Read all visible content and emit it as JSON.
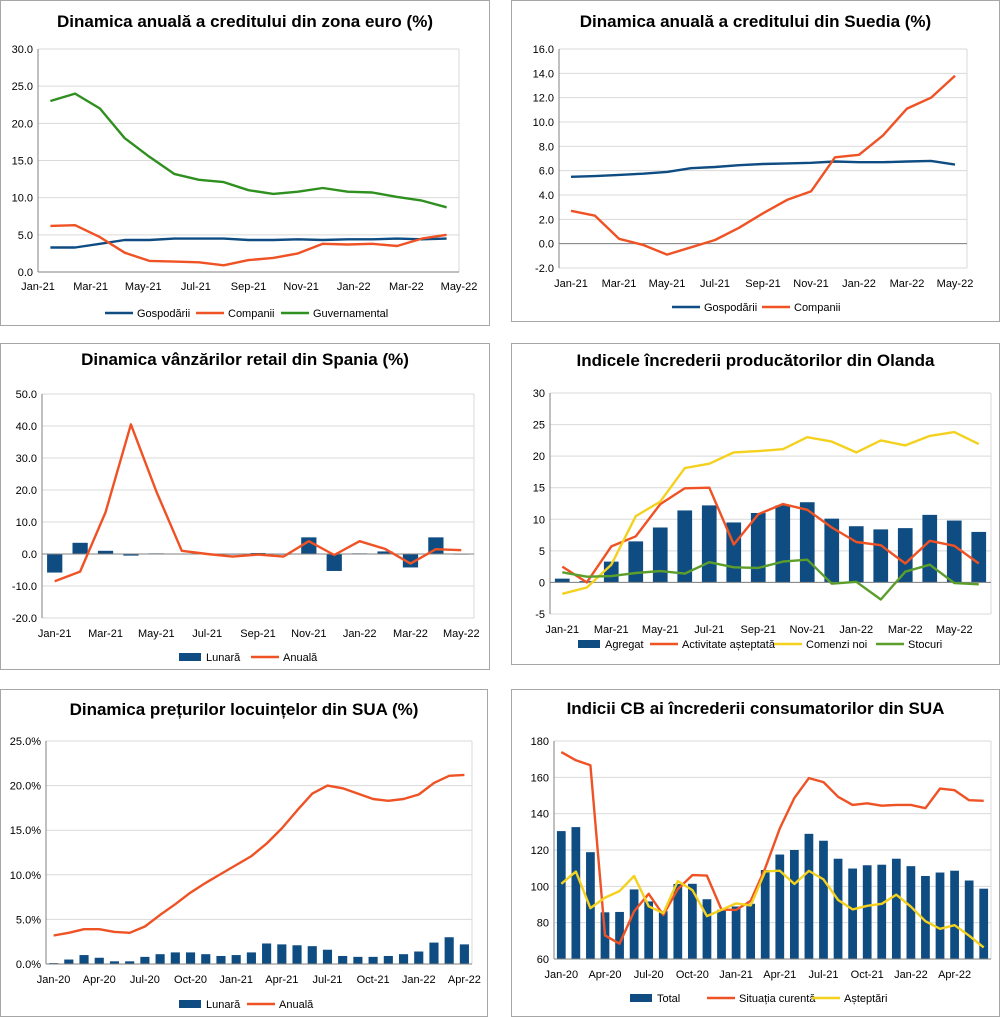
{
  "colors": {
    "navy": "#0e4c82",
    "orange": "#ef5224",
    "green": "#2f8f1f",
    "yellow": "#f5d11f",
    "olive": "#5c9e2b",
    "grid": "#d9d9d9",
    "axis": "#808080"
  },
  "chart_data": [
    {
      "id": "c1",
      "type": "line",
      "title": "Dinamica anuală a creditului din zona euro (%)",
      "categories": [
        "Jan-21",
        "Feb-21",
        "Mar-21",
        "Apr-21",
        "May-21",
        "Jun-21",
        "Jul-21",
        "Aug-21",
        "Sep-21",
        "Oct-21",
        "Nov-21",
        "Dec-21",
        "Jan-22",
        "Feb-22",
        "Mar-22",
        "Apr-22",
        "May-22"
      ],
      "tick_labels": [
        "Jan-21",
        "Mar-21",
        "May-21",
        "Jul-21",
        "Sep-21",
        "Nov-21",
        "Jan-22",
        "Mar-22",
        "May-22"
      ],
      "y_ticks": [
        "0.0",
        "5.0",
        "10.0",
        "15.0",
        "20.0",
        "25.0",
        "30.0"
      ],
      "ylim": [
        0,
        30
      ],
      "series": [
        {
          "name": "Gospodării",
          "style": "line",
          "color": "navy",
          "values": [
            3.3,
            3.3,
            3.8,
            4.3,
            4.3,
            4.5,
            4.5,
            4.5,
            4.3,
            4.3,
            4.4,
            4.3,
            4.4,
            4.4,
            4.5,
            4.4,
            4.5
          ]
        },
        {
          "name": "Companii",
          "style": "line",
          "color": "orange",
          "values": [
            6.2,
            6.3,
            4.7,
            2.6,
            1.5,
            1.4,
            1.3,
            0.9,
            1.6,
            1.9,
            2.5,
            3.8,
            3.7,
            3.8,
            3.5,
            4.5,
            5.0
          ]
        },
        {
          "name": "Guvernamental",
          "style": "line",
          "color": "green",
          "values": [
            23.0,
            24.0,
            22.0,
            18.0,
            15.5,
            13.2,
            12.4,
            12.1,
            11.0,
            10.5,
            10.8,
            11.3,
            10.8,
            10.7,
            10.1,
            9.6,
            8.7
          ]
        }
      ]
    },
    {
      "id": "c2",
      "type": "line",
      "title": "Dinamica anuală a creditului din Suedia (%)",
      "categories": [
        "Jan-21",
        "Feb-21",
        "Mar-21",
        "Apr-21",
        "May-21",
        "Jun-21",
        "Jul-21",
        "Aug-21",
        "Sep-21",
        "Oct-21",
        "Nov-21",
        "Dec-21",
        "Jan-22",
        "Feb-22",
        "Mar-22",
        "Apr-22",
        "May-22"
      ],
      "tick_labels": [
        "Jan-21",
        "Mar-21",
        "May-21",
        "Jul-21",
        "Sep-21",
        "Nov-21",
        "Jan-22",
        "Mar-22",
        "May-22"
      ],
      "y_ticks": [
        "-2.0",
        "0.0",
        "2.0",
        "4.0",
        "6.0",
        "8.0",
        "10.0",
        "12.0",
        "14.0",
        "16.0"
      ],
      "ylim": [
        -2,
        16
      ],
      "series": [
        {
          "name": "Gospodării",
          "style": "line",
          "color": "navy",
          "values": [
            5.5,
            5.55,
            5.65,
            5.75,
            5.9,
            6.2,
            6.3,
            6.45,
            6.55,
            6.6,
            6.65,
            6.75,
            6.7,
            6.7,
            6.75,
            6.8,
            6.5
          ]
        },
        {
          "name": "Companii",
          "style": "line",
          "color": "orange",
          "values": [
            2.7,
            2.3,
            0.4,
            -0.1,
            -0.9,
            -0.3,
            0.3,
            1.3,
            2.5,
            3.6,
            4.3,
            7.1,
            7.3,
            8.9,
            11.1,
            12.0,
            13.8
          ]
        }
      ]
    },
    {
      "id": "c3",
      "type": "bar",
      "title": "Dinamica vânzărilor retail din Spania (%)",
      "categories": [
        "Jan-21",
        "Feb-21",
        "Mar-21",
        "Apr-21",
        "May-21",
        "Jun-21",
        "Jul-21",
        "Aug-21",
        "Sep-21",
        "Oct-21",
        "Nov-21",
        "Dec-21",
        "Jan-22",
        "Feb-22",
        "Mar-22",
        "Apr-22",
        "May-22"
      ],
      "tick_labels": [
        "Jan-21",
        "Mar-21",
        "May-21",
        "Jul-21",
        "Sep-21",
        "Nov-21",
        "Jan-22",
        "Mar-22",
        "May-22"
      ],
      "y_ticks": [
        "-20.0",
        "-10.0",
        "0.0",
        "10.0",
        "20.0",
        "30.0",
        "40.0",
        "50.0"
      ],
      "ylim": [
        -20,
        50
      ],
      "series": [
        {
          "name": "Lunară",
          "style": "bar",
          "color": "navy",
          "values": [
            -5.8,
            3.5,
            1.0,
            -0.5,
            0.2,
            0.1,
            0.1,
            0.0,
            0.3,
            -0.2,
            5.2,
            -5.3,
            0.2,
            0.8,
            -4.2,
            5.2,
            0.0
          ]
        },
        {
          "name": "Anuală",
          "style": "line",
          "color": "orange",
          "values": [
            -8.5,
            -5.5,
            13.0,
            40.5,
            19.5,
            1.0,
            0.0,
            -0.8,
            -0.2,
            -0.8,
            4.0,
            -0.3,
            4.0,
            1.6,
            -3.0,
            1.5,
            1.2
          ]
        }
      ]
    },
    {
      "id": "c4",
      "type": "bar",
      "title": "Indicele încrederii producătorilor din Olanda",
      "categories": [
        "Jan-21",
        "Feb-21",
        "Mar-21",
        "Apr-21",
        "May-21",
        "Jun-21",
        "Jul-21",
        "Aug-21",
        "Sep-21",
        "Oct-21",
        "Nov-21",
        "Dec-21",
        "Jan-22",
        "Feb-22",
        "Mar-22",
        "Apr-22",
        "May-22",
        "Jun-22"
      ],
      "tick_labels": [
        "Jan-21",
        "Mar-21",
        "May-21",
        "Jul-21",
        "Sep-21",
        "Nov-21",
        "Jan-22",
        "Mar-22",
        "May-22"
      ],
      "y_ticks": [
        "-5",
        "0",
        "5",
        "10",
        "15",
        "20",
        "25",
        "30"
      ],
      "ylim": [
        -5,
        30
      ],
      "series": [
        {
          "name": "Agregat",
          "style": "bar",
          "color": "navy",
          "values": [
            0.6,
            0.2,
            3.3,
            6.5,
            8.7,
            11.4,
            12.2,
            9.5,
            11.0,
            12.2,
            12.7,
            10.1,
            8.9,
            8.4,
            8.6,
            10.7,
            9.8,
            8.0
          ]
        },
        {
          "name": "Activitate așteptată",
          "style": "line",
          "color": "orange",
          "values": [
            2.5,
            0.0,
            5.7,
            7.3,
            12.4,
            14.9,
            15.0,
            6.0,
            10.8,
            12.4,
            11.5,
            8.7,
            6.4,
            5.9,
            3.0,
            6.6,
            5.8,
            3.0
          ]
        },
        {
          "name": "Comenzi noi",
          "style": "line",
          "color": "yellow",
          "values": [
            -1.8,
            -0.8,
            2.8,
            10.5,
            12.8,
            18.1,
            18.8,
            20.6,
            20.8,
            21.1,
            23.0,
            22.3,
            20.6,
            22.5,
            21.7,
            23.2,
            23.8,
            21.9
          ]
        },
        {
          "name": "Stocuri",
          "style": "line",
          "color": "olive",
          "values": [
            1.6,
            0.9,
            1.0,
            1.5,
            1.8,
            1.4,
            3.2,
            2.4,
            2.3,
            3.3,
            3.6,
            -0.2,
            0.1,
            -2.7,
            1.7,
            2.8,
            -0.1,
            -0.3
          ]
        }
      ]
    },
    {
      "id": "c5",
      "type": "bar",
      "title": "Dinamica prețurilor locuințelor din SUA (%)",
      "categories": [
        "Jan-20",
        "Feb-20",
        "Mar-20",
        "Apr-20",
        "May-20",
        "Jun-20",
        "Jul-20",
        "Aug-20",
        "Sep-20",
        "Oct-20",
        "Nov-20",
        "Dec-20",
        "Jan-21",
        "Feb-21",
        "Mar-21",
        "Apr-21",
        "May-21",
        "Jun-21",
        "Jul-21",
        "Aug-21",
        "Sep-21",
        "Oct-21",
        "Nov-21",
        "Dec-21",
        "Jan-22",
        "Feb-22",
        "Mar-22",
        "Apr-22"
      ],
      "tick_labels": [
        "Jan-20",
        "Apr-20",
        "Jul-20",
        "Oct-20",
        "Jan-21",
        "Apr-21",
        "Jul-21",
        "Oct-21",
        "Jan-22",
        "Apr-22"
      ],
      "y_ticks": [
        "0.0%",
        "5.0%",
        "10.0%",
        "15.0%",
        "20.0%",
        "25.0%"
      ],
      "ylim": [
        0,
        25
      ],
      "series": [
        {
          "name": "Lunară",
          "style": "bar",
          "color": "navy",
          "values": [
            0.1,
            0.5,
            1.0,
            0.7,
            0.3,
            0.3,
            0.8,
            1.1,
            1.3,
            1.3,
            1.1,
            0.9,
            1.0,
            1.3,
            2.3,
            2.2,
            2.1,
            2.0,
            1.6,
            0.9,
            0.8,
            0.8,
            0.9,
            1.1,
            1.4,
            2.4,
            3.0,
            2.2
          ]
        },
        {
          "name": "Anuală",
          "style": "line",
          "color": "orange",
          "values": [
            3.2,
            3.5,
            3.9,
            3.9,
            3.6,
            3.5,
            4.2,
            5.5,
            6.7,
            8.0,
            9.1,
            10.1,
            11.1,
            12.1,
            13.5,
            15.2,
            17.2,
            19.1,
            20.0,
            19.7,
            19.1,
            18.5,
            18.3,
            18.5,
            19.0,
            20.3,
            21.1,
            21.2
          ]
        }
      ]
    },
    {
      "id": "c6",
      "type": "bar",
      "title": "Indicii CB ai încrederii consumatorilor din SUA",
      "categories": [
        "Jan-20",
        "Feb-20",
        "Mar-20",
        "Apr-20",
        "May-20",
        "Jun-20",
        "Jul-20",
        "Aug-20",
        "Sep-20",
        "Oct-20",
        "Nov-20",
        "Dec-20",
        "Jan-21",
        "Feb-21",
        "Mar-21",
        "Apr-21",
        "May-21",
        "Jun-21",
        "Jul-21",
        "Aug-21",
        "Sep-21",
        "Oct-21",
        "Nov-21",
        "Dec-21",
        "Jan-22",
        "Feb-22",
        "Mar-22",
        "Apr-22",
        "May-22",
        "Jun-22"
      ],
      "tick_labels": [
        "Jan-20",
        "Apr-20",
        "Jul-20",
        "Oct-20",
        "Jan-21",
        "Apr-21",
        "Jul-21",
        "Oct-21",
        "Jan-22",
        "Apr-22"
      ],
      "y_ticks": [
        "60",
        "80",
        "100",
        "120",
        "140",
        "160",
        "180"
      ],
      "ylim": [
        60,
        180
      ],
      "series": [
        {
          "name": "Total",
          "style": "bar",
          "color": "navy",
          "values": [
            130.4,
            132.6,
            118.8,
            85.7,
            85.9,
            98.3,
            91.7,
            86.3,
            101.3,
            101.4,
            92.9,
            87.1,
            88.9,
            90.4,
            109.0,
            117.5,
            120.0,
            128.9,
            125.1,
            115.2,
            109.8,
            111.6,
            111.9,
            115.2,
            111.1,
            105.7,
            107.6,
            108.6,
            103.2,
            98.7
          ]
        },
        {
          "name": "Situația curentă",
          "style": "line",
          "color": "orange",
          "values": [
            173.9,
            169.4,
            166.7,
            73.0,
            68.4,
            86.2,
            95.9,
            84.2,
            98.5,
            106.2,
            105.9,
            87.2,
            87.0,
            92.0,
            110.0,
            131.9,
            148.7,
            159.6,
            157.4,
            149.3,
            144.8,
            145.7,
            144.4,
            144.8,
            144.8,
            143.0,
            153.8,
            152.9,
            147.4,
            147.1
          ]
        },
        {
          "name": "Așteptări",
          "style": "line",
          "color": "yellow",
          "values": [
            101.4,
            108.1,
            88.0,
            93.8,
            97.4,
            105.7,
            89.0,
            85.2,
            102.9,
            97.9,
            83.6,
            87.0,
            90.6,
            89.5,
            108.2,
            108.6,
            101.3,
            108.5,
            103.8,
            92.5,
            87.3,
            89.3,
            90.4,
            95.4,
            88.8,
            80.8,
            76.6,
            78.6,
            72.8,
            66.4
          ]
        }
      ]
    }
  ]
}
